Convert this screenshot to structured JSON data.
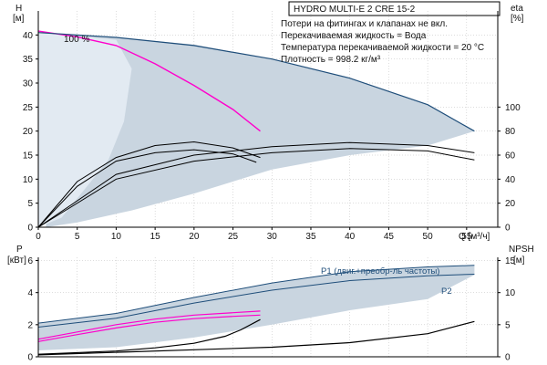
{
  "colors": {
    "background": "#ffffff",
    "area_fill": "#c9d5e0",
    "area_fill_light": "#e2eaf2",
    "envelope_line": "#1f4e7a",
    "pump_curve": "#000000",
    "system_curve": "#ff00cc",
    "eta_curve": "#000000",
    "axis": "#000000",
    "grid": "#bbbbbb",
    "title_box_border": "#000000"
  },
  "chart_data": [
    {
      "id": "head_efficiency",
      "type": "line",
      "title": "HYDRO MULTI-E 2 CRE 15-2",
      "annotations": [
        "Потери на фитингах и клапанах не вкл.",
        "Перекачиваемая жидкость = Вода",
        "Температура перекачиваемой жидкости = 20 °C",
        "Плотность = 998.2 кг/м³"
      ],
      "curve_label": "100 %",
      "x_label": "Q [м³/ч]",
      "y_label_left": "H",
      "y_unit_left": "[м]",
      "y_label_right": "eta",
      "y_unit_right": "[%]",
      "xlim": [
        0,
        59
      ],
      "ylim_left": [
        0,
        45
      ],
      "ylim_right": [
        0,
        180
      ],
      "x_ticks": [
        0,
        5,
        10,
        15,
        20,
        25,
        30,
        35,
        40,
        45,
        50,
        55
      ],
      "y_ticks_left": [
        0,
        5,
        10,
        15,
        20,
        25,
        30,
        35,
        40
      ],
      "y_ticks_right": [
        0,
        20,
        40,
        60,
        80,
        100
      ],
      "grid": true,
      "envelope": {
        "upper": [
          [
            0,
            40.5
          ],
          [
            10,
            39.5
          ],
          [
            20,
            38
          ],
          [
            30,
            35
          ],
          [
            40,
            31
          ],
          [
            50,
            25.5
          ],
          [
            56,
            20
          ]
        ],
        "lower": [
          [
            56,
            20
          ],
          [
            50,
            17
          ],
          [
            40,
            15
          ],
          [
            30,
            12
          ],
          [
            20,
            7
          ],
          [
            12,
            3.5
          ],
          [
            5,
            1
          ],
          [
            1,
            0
          ]
        ]
      },
      "light_region": [
        [
          0,
          40.5
        ],
        [
          10,
          39
        ],
        [
          12,
          33
        ],
        [
          11,
          22
        ],
        [
          9,
          14
        ],
        [
          6,
          8
        ],
        [
          3,
          2
        ],
        [
          0,
          0
        ]
      ],
      "series": [
        {
          "name": "100 %",
          "kind": "system",
          "axis": "left",
          "points": [
            [
              0,
              40.8
            ],
            [
              5,
              39.6
            ],
            [
              10,
              37.8
            ],
            [
              15,
              34
            ],
            [
              20,
              29.5
            ],
            [
              25,
              24.5
            ],
            [
              28.5,
              20
            ]
          ]
        },
        {
          "kind": "envelope_max",
          "axis": "left",
          "points": [
            [
              0,
              40.5
            ],
            [
              10,
              39.5
            ],
            [
              20,
              37.8
            ],
            [
              30,
              35
            ],
            [
              40,
              31
            ],
            [
              50,
              25.5
            ],
            [
              56,
              20
            ]
          ]
        },
        {
          "kind": "eta",
          "axis": "right",
          "points": [
            [
              0,
              0
            ],
            [
              5,
              38
            ],
            [
              10,
              58
            ],
            [
              15,
              68
            ],
            [
              20,
              71
            ],
            [
              25,
              66
            ],
            [
              28.5,
              58
            ]
          ]
        },
        {
          "kind": "eta",
          "axis": "right",
          "points": [
            [
              0,
              0
            ],
            [
              5,
              34
            ],
            [
              10,
              55
            ],
            [
              15,
              62
            ],
            [
              20,
              64.5
            ],
            [
              25,
              61
            ],
            [
              28,
              54
            ]
          ]
        },
        {
          "kind": "eta",
          "axis": "right",
          "points": [
            [
              0,
              0
            ],
            [
              10,
              44
            ],
            [
              20,
              60
            ],
            [
              30,
              67
            ],
            [
              40,
              70.5
            ],
            [
              50,
              68
            ],
            [
              56,
              62
            ]
          ]
        },
        {
          "kind": "eta",
          "axis": "right",
          "points": [
            [
              0,
              0
            ],
            [
              10,
              40
            ],
            [
              20,
              55
            ],
            [
              30,
              62
            ],
            [
              40,
              65.5
            ],
            [
              50,
              63.5
            ],
            [
              56,
              56
            ]
          ]
        }
      ]
    },
    {
      "id": "power_npsh",
      "type": "line",
      "y_label_left": "P",
      "y_unit_left": "[кВт]",
      "y_label_right": "NPSH",
      "y_unit_right": "[м]",
      "xlim": [
        0,
        59
      ],
      "ylim_left": [
        0,
        6.2
      ],
      "ylim_right": [
        0,
        15.5
      ],
      "y_ticks_left": [
        0,
        2,
        4,
        6
      ],
      "y_ticks_right": [
        0,
        5,
        10,
        15
      ],
      "grid": true,
      "legend_labels": [
        "P1 (двиг.+преобр-ль частоты)",
        "P2"
      ],
      "envelope": {
        "upper": [
          [
            0,
            2.1
          ],
          [
            10,
            2.7
          ],
          [
            20,
            3.7
          ],
          [
            30,
            4.6
          ],
          [
            40,
            5.3
          ],
          [
            50,
            5.6
          ],
          [
            56,
            5.7
          ]
        ],
        "lower": [
          [
            56,
            5.1
          ],
          [
            50,
            3.6
          ],
          [
            40,
            2.9
          ],
          [
            30,
            2.0
          ],
          [
            20,
            1.2
          ],
          [
            10,
            0.6
          ],
          [
            0,
            0.4
          ]
        ]
      },
      "series": [
        {
          "name": "P1 (двиг.+преобр-ль частоты)",
          "kind": "power",
          "axis": "left",
          "points": [
            [
              0,
              2.1
            ],
            [
              10,
              2.7
            ],
            [
              20,
              3.7
            ],
            [
              30,
              4.6
            ],
            [
              40,
              5.3
            ],
            [
              50,
              5.6
            ],
            [
              56,
              5.7
            ]
          ]
        },
        {
          "name": "P2",
          "kind": "power",
          "axis": "left",
          "points": [
            [
              0,
              1.85
            ],
            [
              10,
              2.4
            ],
            [
              20,
              3.35
            ],
            [
              30,
              4.15
            ],
            [
              40,
              4.75
            ],
            [
              50,
              5.05
            ],
            [
              56,
              5.15
            ]
          ]
        },
        {
          "kind": "system_power",
          "axis": "left",
          "points": [
            [
              0,
              1.1
            ],
            [
              5,
              1.55
            ],
            [
              10,
              2.0
            ],
            [
              15,
              2.35
            ],
            [
              20,
              2.6
            ],
            [
              25,
              2.75
            ],
            [
              28.5,
              2.85
            ]
          ]
        },
        {
          "kind": "system_power",
          "axis": "left",
          "points": [
            [
              0,
              0.95
            ],
            [
              5,
              1.38
            ],
            [
              10,
              1.8
            ],
            [
              15,
              2.15
            ],
            [
              20,
              2.38
            ],
            [
              25,
              2.52
            ],
            [
              28.5,
              2.6
            ]
          ]
        },
        {
          "kind": "npsh",
          "axis": "right",
          "points": [
            [
              0,
              0.4
            ],
            [
              10,
              0.9
            ],
            [
              15,
              1.4
            ],
            [
              20,
              2.1
            ],
            [
              24,
              3.2
            ],
            [
              26,
              4.2
            ],
            [
              28.5,
              5.8
            ]
          ]
        },
        {
          "kind": "npsh",
          "axis": "right",
          "points": [
            [
              0,
              0.3
            ],
            [
              20,
              1.1
            ],
            [
              30,
              1.5
            ],
            [
              40,
              2.2
            ],
            [
              50,
              3.6
            ],
            [
              56,
              5.5
            ]
          ]
        }
      ]
    }
  ]
}
